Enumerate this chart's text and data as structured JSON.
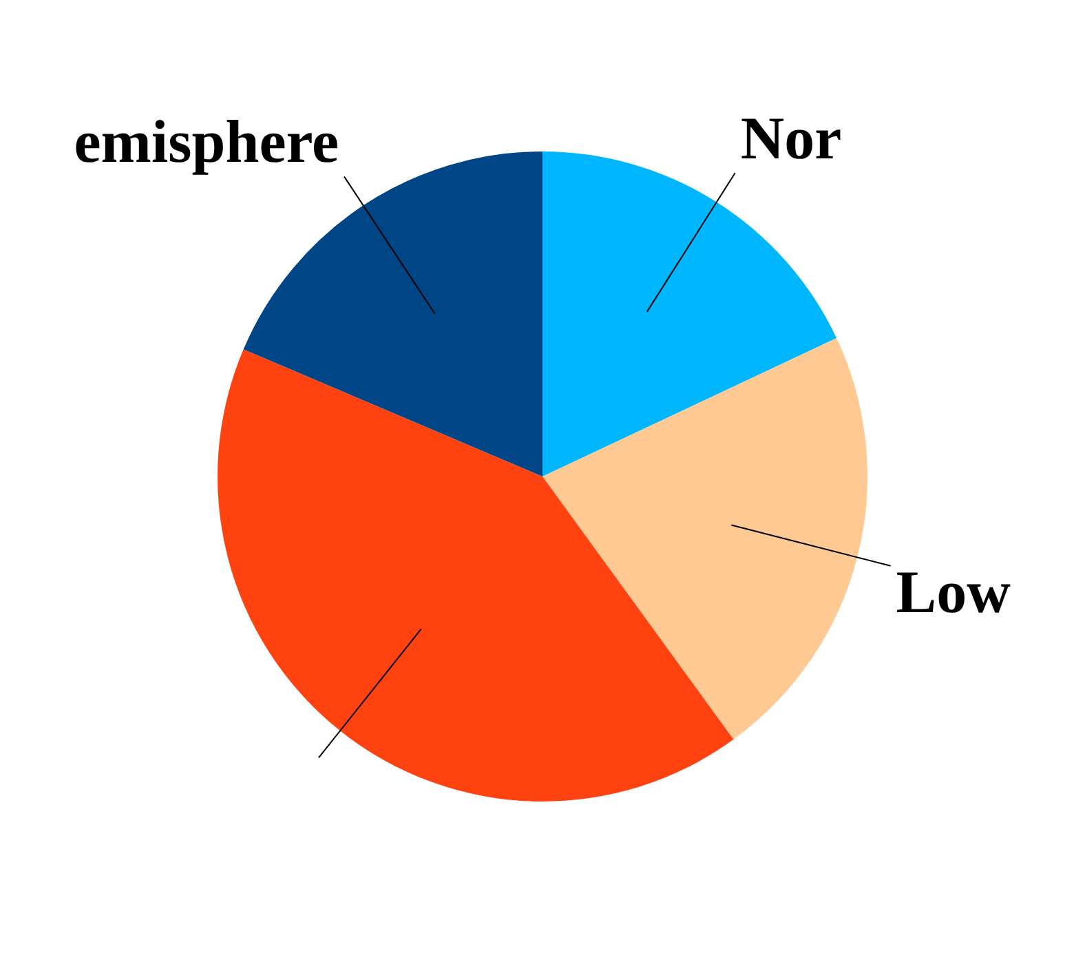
{
  "chart_data": {
    "type": "pie",
    "categories": [
      "Nor",
      "Low",
      null,
      "emisphere"
    ],
    "values": [
      18,
      22,
      41.4,
      18.6
    ],
    "colors": [
      "#00b7ff",
      "#ffc993",
      "#ff4310",
      "#004586"
    ],
    "legend": false
  }
}
